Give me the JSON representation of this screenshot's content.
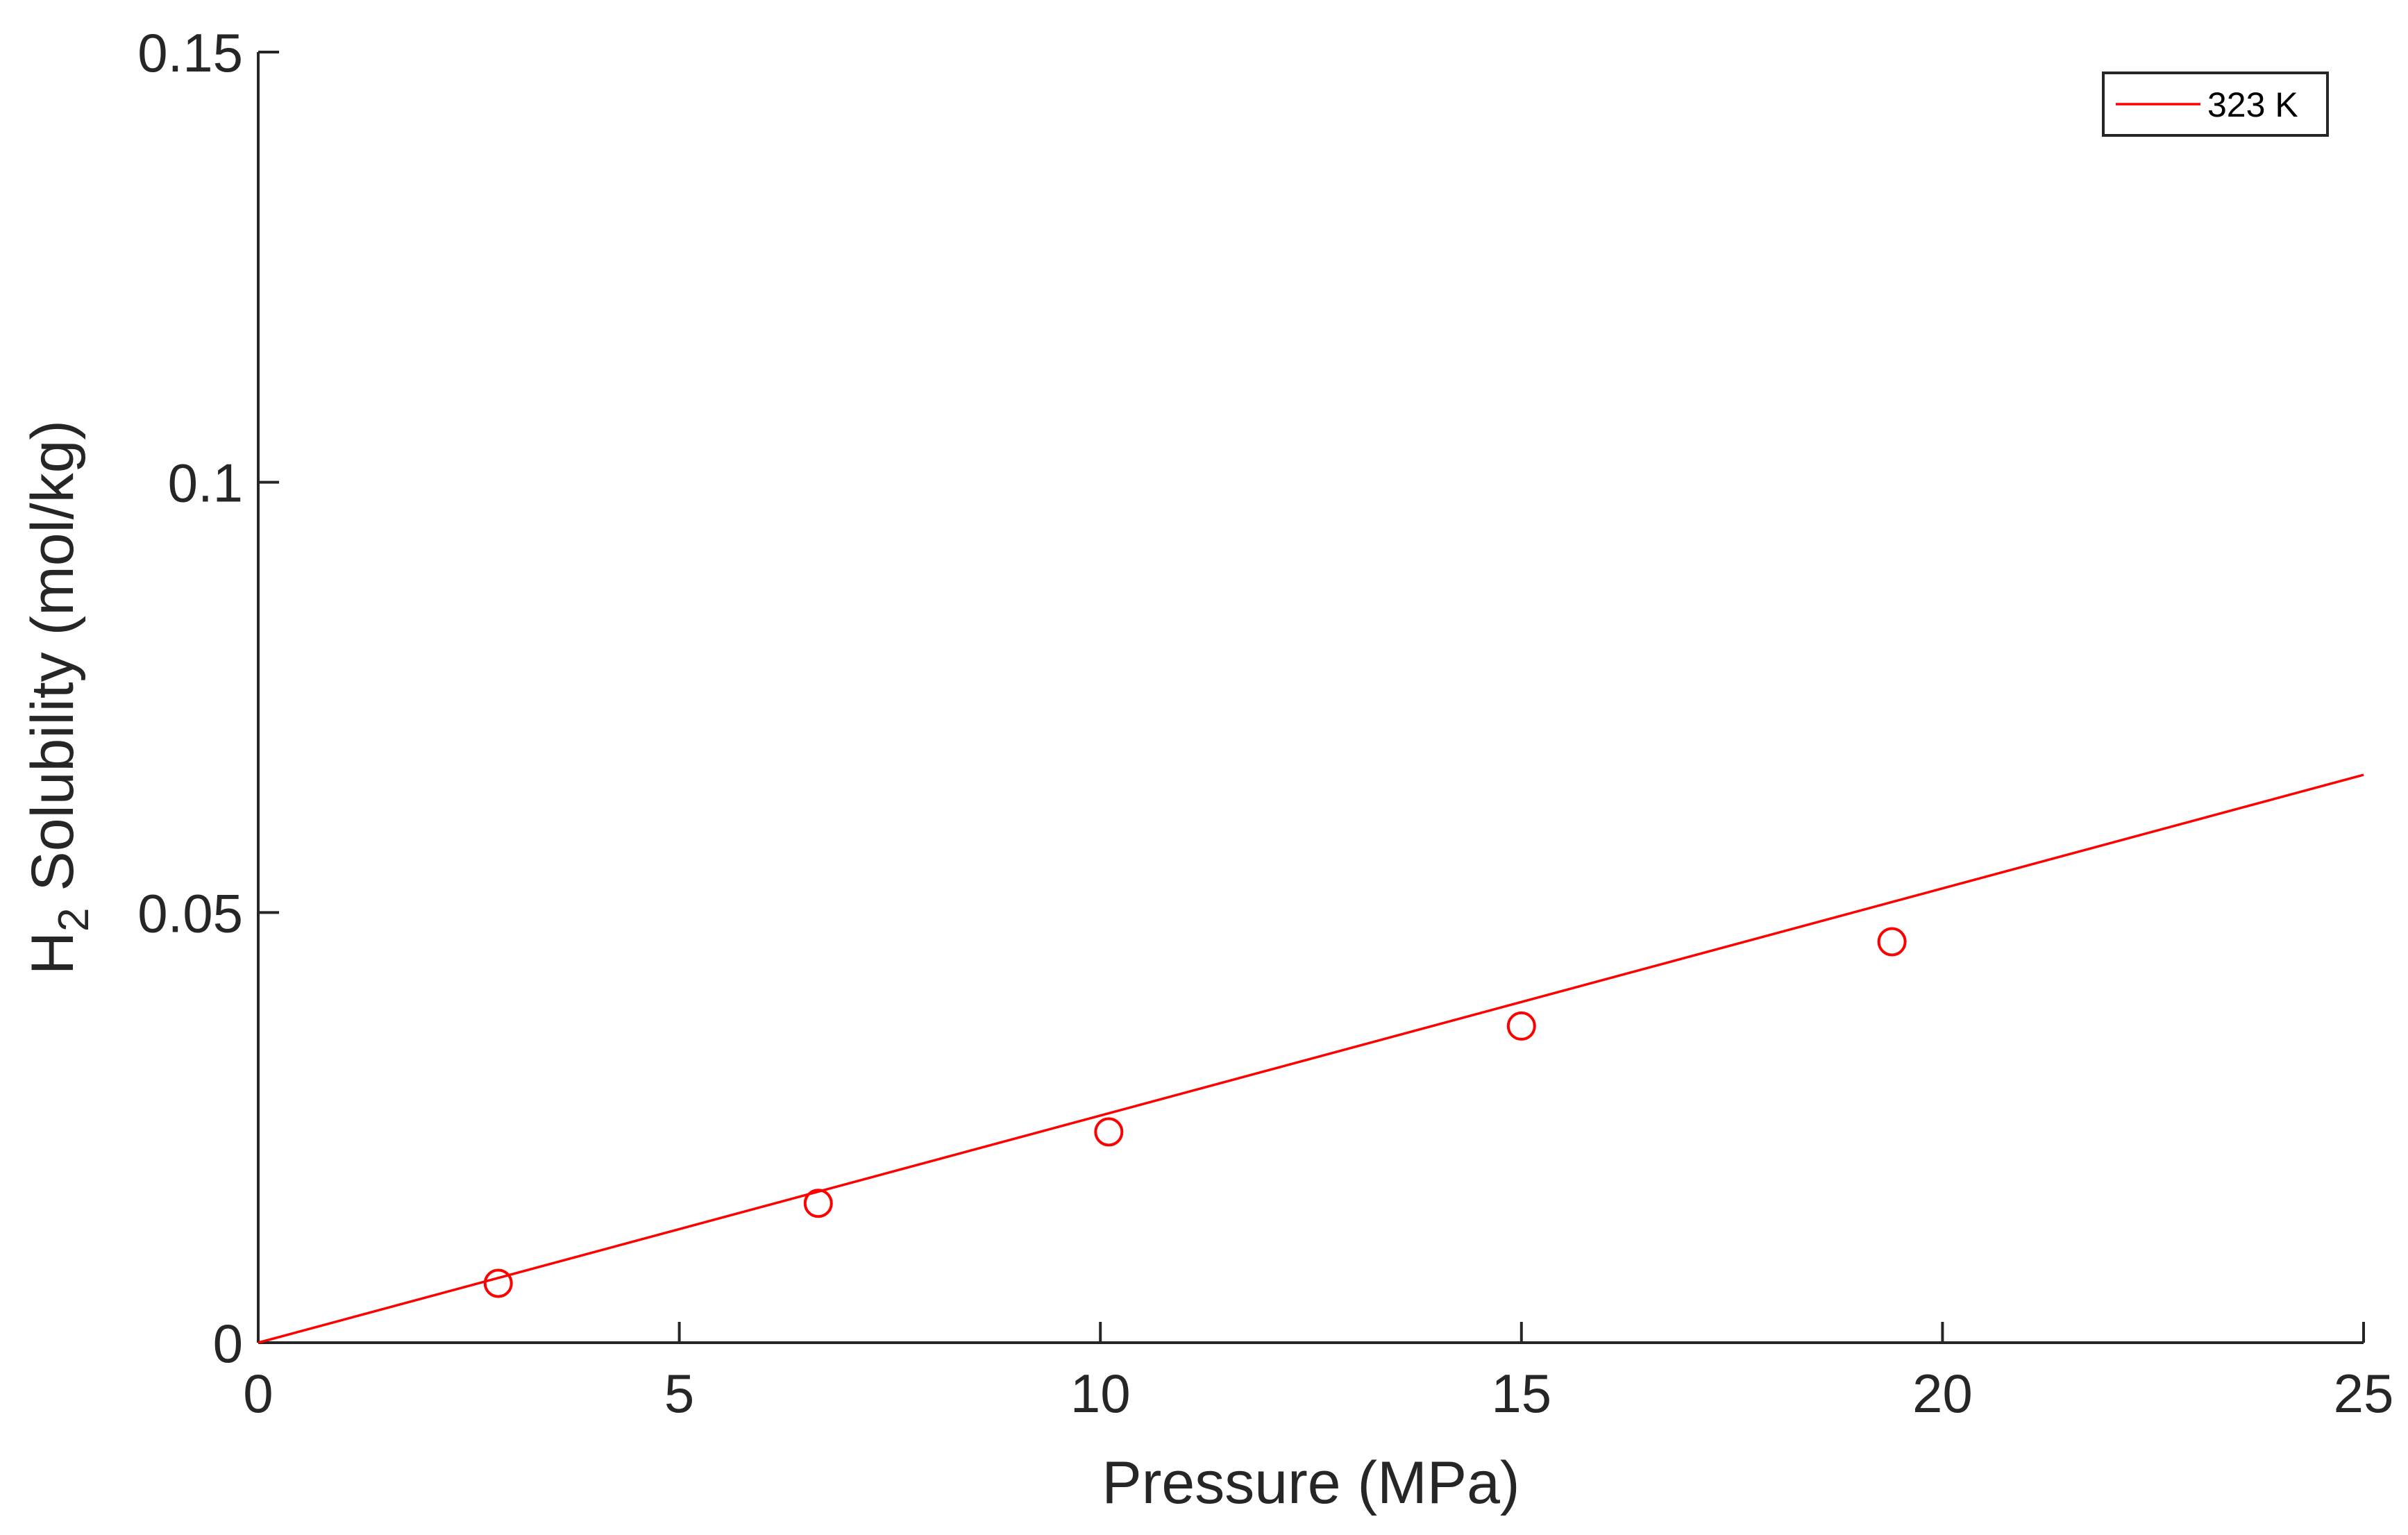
{
  "chart_data": {
    "type": "scatter",
    "xlabel": "Pressure (MPa)",
    "ylabel": {
      "prefix": "H",
      "subscript": "2",
      "suffix": " Solubility (mol/kg)"
    },
    "xlim": [
      0,
      25
    ],
    "ylim": [
      0,
      0.15
    ],
    "xticks": [
      0,
      5,
      10,
      15,
      20,
      25
    ],
    "yticks": [
      0,
      0.05,
      0.1,
      0.15
    ],
    "xtick_labels": [
      "0",
      "5",
      "10",
      "15",
      "20",
      "25"
    ],
    "ytick_labels": [
      "0",
      "0.05",
      "0.1",
      "0.15"
    ],
    "grid": false,
    "legend": {
      "position": "top-right",
      "entries": [
        "323 K"
      ]
    },
    "series": [
      {
        "name": "323 K",
        "type": "line",
        "color": "#ff0000",
        "x": [
          0,
          25
        ],
        "y": [
          0,
          0.066
        ]
      },
      {
        "type": "scatter",
        "marker": "circle-open",
        "color": "#ff0000",
        "x": [
          2.85,
          6.65,
          10.1,
          15.0,
          19.4
        ],
        "y": [
          0.0069,
          0.0162,
          0.0245,
          0.0368,
          0.0466
        ]
      }
    ]
  }
}
